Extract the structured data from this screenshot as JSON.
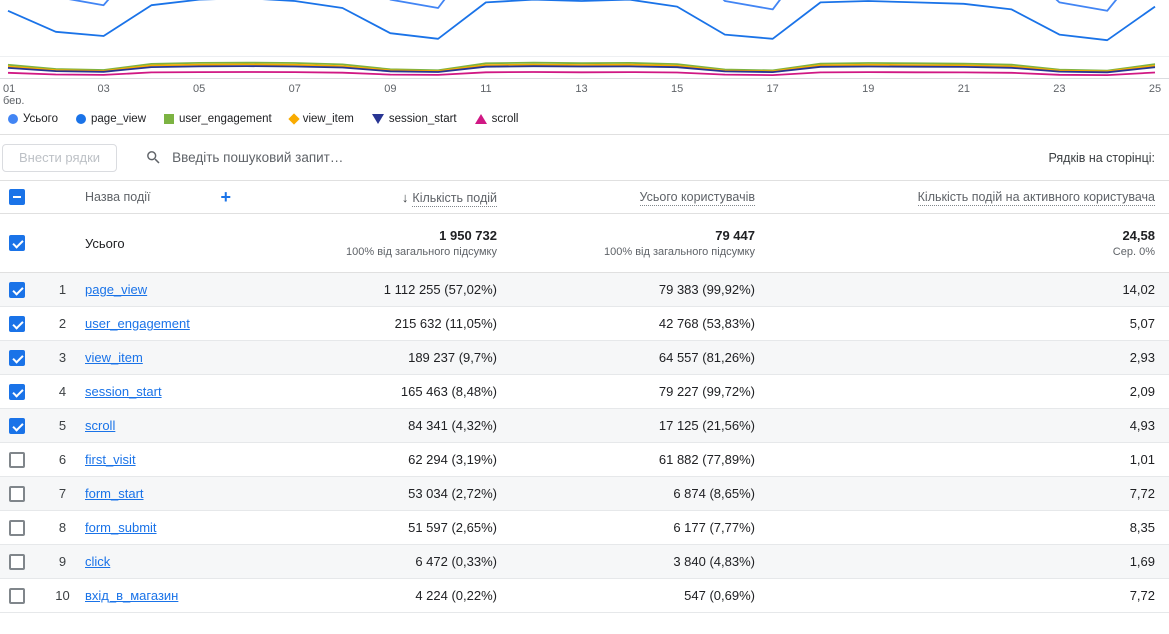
{
  "chart_data": {
    "type": "line",
    "title": "",
    "x_days": [
      1,
      2,
      3,
      4,
      5,
      6,
      7,
      8,
      9,
      10,
      11,
      12,
      13,
      14,
      15,
      16,
      17,
      18,
      19,
      20,
      21,
      22,
      23,
      24,
      25
    ],
    "x_tick_labels": [
      "01 бер.",
      "03",
      "05",
      "07",
      "09",
      "11",
      "13",
      "15",
      "17",
      "19",
      "21",
      "23",
      "25"
    ],
    "ylim": [
      0,
      100000
    ],
    "legend_position": "bottom",
    "grid": "off",
    "series": [
      {
        "name": "Усього",
        "color": "#4285f4",
        "shape": "circle",
        "values": [
          85000,
          58000,
          52000,
          92000,
          98000,
          100000,
          97000,
          88000,
          56000,
          50000,
          95000,
          99000,
          96000,
          98000,
          90000,
          55000,
          49000,
          94000,
          97000,
          95000,
          93000,
          86000,
          54000,
          48000,
          90000
        ]
      },
      {
        "name": "page_view",
        "color": "#1a73e8",
        "shape": "circle",
        "values": [
          48000,
          33000,
          30000,
          52000,
          56000,
          57000,
          55000,
          50000,
          32000,
          28000,
          54000,
          56000,
          55000,
          56000,
          51000,
          31000,
          28000,
          54000,
          55000,
          54000,
          53000,
          49000,
          31000,
          27000,
          51000
        ]
      },
      {
        "name": "user_engagement",
        "color": "#7cb342",
        "shape": "square",
        "values": [
          9400,
          6400,
          5700,
          10100,
          10800,
          11000,
          10700,
          9700,
          6200,
          5500,
          10500,
          10900,
          10600,
          10800,
          9900,
          6100,
          5400,
          10300,
          10700,
          10500,
          10200,
          9500,
          5900,
          5300,
          9900
        ]
      },
      {
        "name": "view_item",
        "color": "#f9ab00",
        "shape": "diamond",
        "values": [
          8200,
          5600,
          5000,
          8900,
          9500,
          9700,
          9400,
          8500,
          5400,
          4900,
          9200,
          9600,
          9300,
          9500,
          8700,
          5300,
          4800,
          9100,
          9400,
          9200,
          9000,
          8300,
          5200,
          4700,
          8700
        ]
      },
      {
        "name": "session_start",
        "color": "#283593",
        "shape": "triangle-down",
        "values": [
          7200,
          4900,
          4400,
          7800,
          8300,
          8500,
          8200,
          7500,
          4800,
          4300,
          8100,
          8400,
          8200,
          8300,
          7700,
          4700,
          4200,
          8000,
          8200,
          8100,
          7900,
          7300,
          4600,
          4100,
          7700
        ]
      },
      {
        "name": "scroll",
        "color": "#d01884",
        "shape": "triangle-up",
        "values": [
          3700,
          2500,
          2200,
          4000,
          4200,
          4300,
          4200,
          3800,
          2400,
          2200,
          4100,
          4300,
          4100,
          4200,
          3900,
          2400,
          2100,
          4000,
          4200,
          4100,
          4000,
          3700,
          2300,
          2100,
          3900
        ]
      }
    ]
  },
  "toolbar": {
    "plot_rows_button": "Внести рядки",
    "search_placeholder": "Введіть пошуковий запит…",
    "rows_per_page_label": "Рядків на сторінці:"
  },
  "table": {
    "select_all_state": "indeterminate",
    "headers": {
      "event_name": "Назва події",
      "add_icon": "+",
      "sort_icon": "↓",
      "event_count": "Кількість подій",
      "total_users": "Усього користувачів",
      "events_per_active_user": "Кількість подій на активного користувача"
    },
    "totals": {
      "label": "Усього",
      "checked": true,
      "event_count": "1 950 732",
      "event_count_sub": "100% від загального підсумку",
      "total_users": "79 447",
      "total_users_sub": "100% від загального підсумку",
      "events_per_active_user": "24,58",
      "events_per_active_user_sub": "Сер. 0%"
    },
    "rows": [
      {
        "index": 1,
        "name": "page_view",
        "event_count": "1 112 255 (57,02%)",
        "total_users": "79 383 (99,92%)",
        "events_per_active_user": "14,02",
        "checked": true
      },
      {
        "index": 2,
        "name": "user_engagement",
        "event_count": "215 632 (11,05%)",
        "total_users": "42 768 (53,83%)",
        "events_per_active_user": "5,07",
        "checked": true
      },
      {
        "index": 3,
        "name": "view_item",
        "event_count": "189 237 (9,7%)",
        "total_users": "64 557 (81,26%)",
        "events_per_active_user": "2,93",
        "checked": true
      },
      {
        "index": 4,
        "name": "session_start",
        "event_count": "165 463 (8,48%)",
        "total_users": "79 227 (99,72%)",
        "events_per_active_user": "2,09",
        "checked": true
      },
      {
        "index": 5,
        "name": "scroll",
        "event_count": "84 341 (4,32%)",
        "total_users": "17 125 (21,56%)",
        "events_per_active_user": "4,93",
        "checked": true
      },
      {
        "index": 6,
        "name": "first_visit",
        "event_count": "62 294 (3,19%)",
        "total_users": "61 882 (77,89%)",
        "events_per_active_user": "1,01",
        "checked": false
      },
      {
        "index": 7,
        "name": "form_start",
        "event_count": "53 034 (2,72%)",
        "total_users": "6 874 (8,65%)",
        "events_per_active_user": "7,72",
        "checked": false
      },
      {
        "index": 8,
        "name": "form_submit",
        "event_count": "51 597 (2,65%)",
        "total_users": "6 177 (7,77%)",
        "events_per_active_user": "8,35",
        "checked": false
      },
      {
        "index": 9,
        "name": "click",
        "event_count": "6 472 (0,33%)",
        "total_users": "3 840 (4,83%)",
        "events_per_active_user": "1,69",
        "checked": false
      },
      {
        "index": 10,
        "name": "вхід_в_магазин",
        "event_count": "4 224 (0,22%)",
        "total_users": "547 (0,69%)",
        "events_per_active_user": "7,72",
        "checked": false
      }
    ]
  }
}
